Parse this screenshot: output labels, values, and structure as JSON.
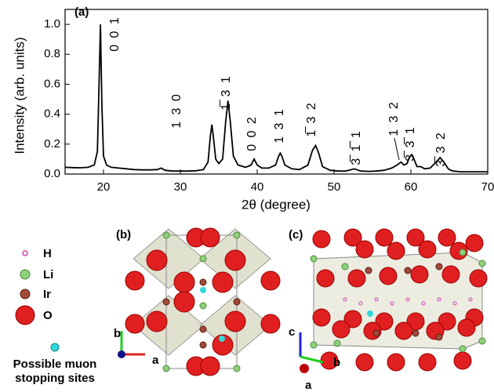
{
  "chart_data": {
    "type": "line",
    "panel_label": "(a)",
    "xlabel": "2θ (degree)",
    "ylabel": "Intensity (arb. units)",
    "x": [
      15,
      16,
      17,
      18,
      18.8,
      19.2,
      19.4,
      19.6,
      19.8,
      20.0,
      20.4,
      21,
      22,
      23,
      24,
      25,
      26,
      27,
      27.5,
      28,
      29,
      30,
      31,
      32,
      33,
      33.6,
      33.9,
      34.1,
      34.3,
      34.6,
      35,
      35.5,
      35.9,
      36.2,
      36.5,
      36.9,
      37.5,
      38.5,
      39.2,
      39.6,
      40,
      40.6,
      41.5,
      42.4,
      42.8,
      43,
      43.2,
      43.6,
      44.5,
      45.5,
      46.6,
      47.2,
      47.6,
      48,
      48.5,
      49.5,
      50.5,
      51.5,
      52.3,
      52.6,
      52.9,
      53.5,
      54.5,
      55.5,
      56.5,
      57.5,
      58.2,
      58.7,
      59.1,
      59.5,
      59.8,
      60.1,
      60.4,
      60.8,
      61.3,
      61.8,
      62.5,
      63.3,
      63.8,
      64.3,
      64.8,
      65,
      65.5,
      66.5,
      67.5,
      68.5,
      70
    ],
    "values": [
      0.045,
      0.043,
      0.042,
      0.045,
      0.06,
      0.15,
      0.55,
      1.0,
      0.45,
      0.12,
      0.06,
      0.045,
      0.04,
      0.035,
      0.03,
      0.028,
      0.028,
      0.03,
      0.04,
      0.025,
      0.02,
      0.02,
      0.02,
      0.022,
      0.03,
      0.08,
      0.25,
      0.33,
      0.25,
      0.1,
      0.07,
      0.1,
      0.35,
      0.49,
      0.35,
      0.12,
      0.06,
      0.045,
      0.06,
      0.1,
      0.06,
      0.04,
      0.04,
      0.06,
      0.12,
      0.14,
      0.12,
      0.06,
      0.035,
      0.03,
      0.06,
      0.16,
      0.19,
      0.14,
      0.05,
      0.025,
      0.02,
      0.02,
      0.03,
      0.035,
      0.03,
      0.02,
      0.018,
      0.02,
      0.025,
      0.04,
      0.06,
      0.08,
      0.06,
      0.07,
      0.11,
      0.13,
      0.1,
      0.05,
      0.05,
      0.035,
      0.04,
      0.08,
      0.11,
      0.08,
      0.04,
      0.03,
      0.02,
      0.015,
      0.015,
      0.015,
      0.015
    ],
    "color": "#000000",
    "xlim": [
      15,
      70
    ],
    "xticks": [
      20,
      30,
      40,
      50,
      60,
      70
    ],
    "ylim": [
      0,
      1.1
    ],
    "yticks": [
      {
        "value": 0,
        "label": "0.0"
      },
      0.2,
      0.4,
      0.6,
      0.8,
      {
        "value": 1,
        "label": "1.0"
      }
    ],
    "annotations": [
      "0 0 1",
      "1 3 0",
      "1̅ 3 1",
      "0 0 2",
      "1 3 1",
      "1̅ 3 2",
      "3̅ 1̅ 1",
      "1 3 2",
      "3̅ 3̅ 1",
      "3̅ 3 2"
    ]
  },
  "structure": {
    "panels": [
      "(b)",
      "(c)"
    ],
    "legend": [
      "H",
      "Li",
      "Ir",
      "O"
    ],
    "muon_label": [
      "Possible muon",
      "stopping sites"
    ],
    "axes_b": [
      "b",
      "a"
    ],
    "axes_c": [
      "c",
      "b",
      "a"
    ]
  }
}
